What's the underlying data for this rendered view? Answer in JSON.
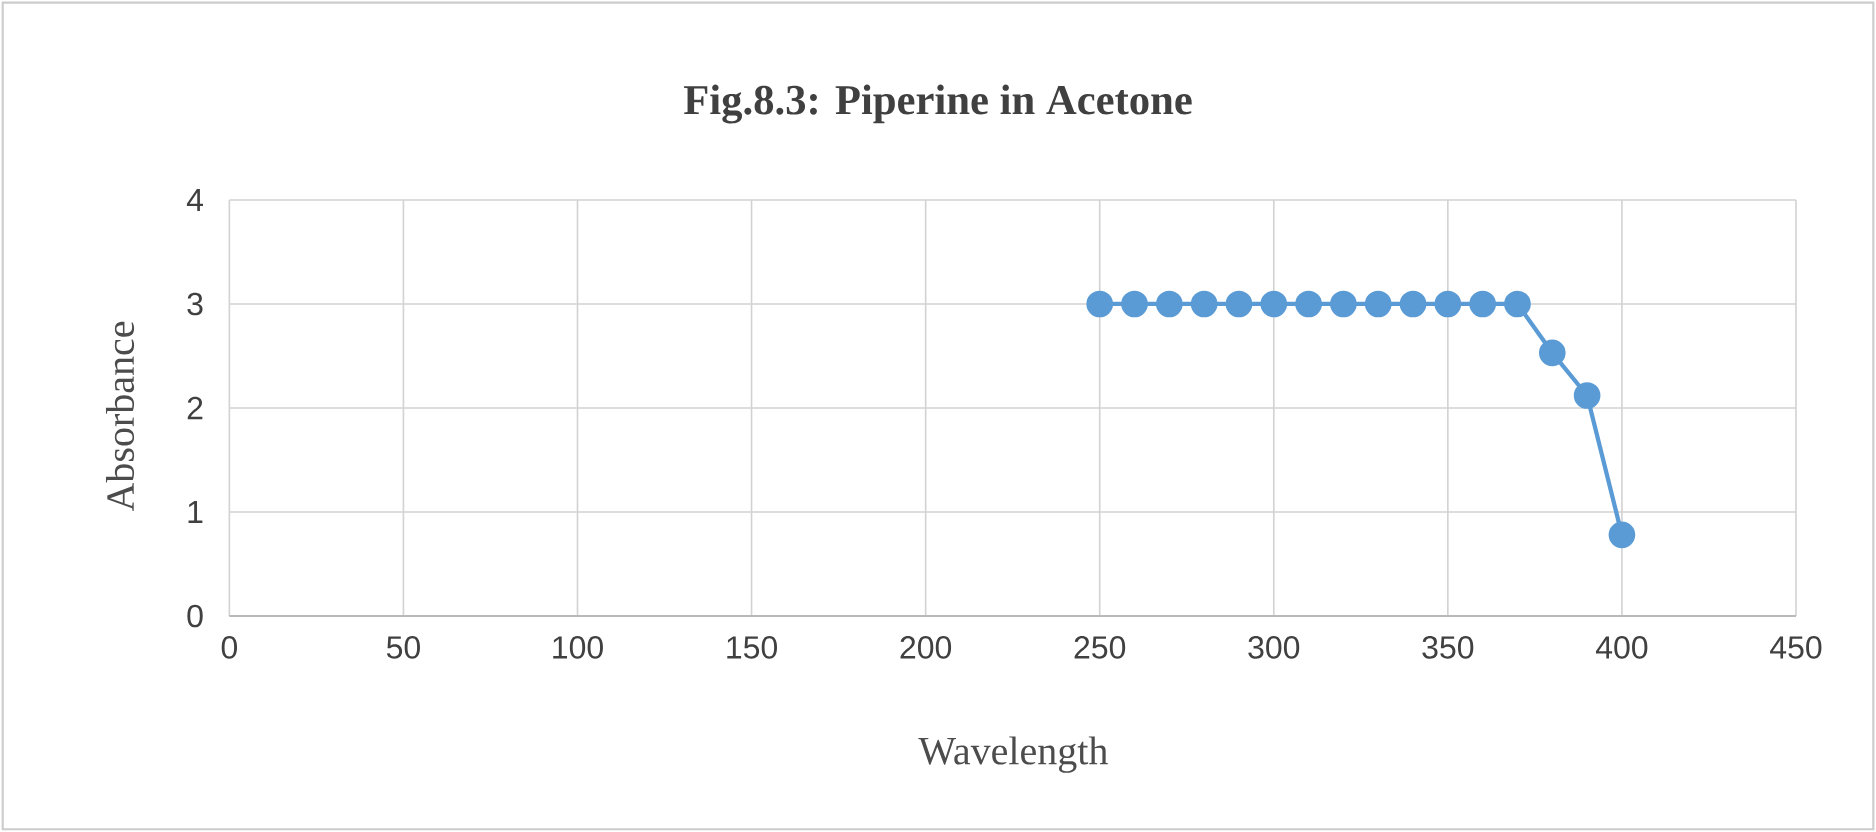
{
  "chart_data": {
    "type": "line",
    "title": "Fig.8.3: Piperine in Acetone",
    "xlabel": "Wavelength",
    "ylabel": "Absorbance",
    "x": [
      250,
      260,
      270,
      280,
      290,
      300,
      310,
      320,
      330,
      340,
      350,
      360,
      370,
      380,
      390,
      400
    ],
    "series": [
      {
        "color": "#5b9bd5",
        "values": [
          3,
          3,
          3,
          3,
          3,
          3,
          3,
          3,
          3,
          3,
          3,
          3,
          3,
          2.53,
          2.12,
          0.78
        ]
      }
    ],
    "xlim": [
      0,
      450
    ],
    "xticks": [
      0,
      50,
      100,
      150,
      200,
      250,
      300,
      350,
      400,
      450
    ],
    "ylim": [
      0,
      4
    ],
    "yticks": [
      0,
      1,
      2,
      3,
      4
    ],
    "grid": true,
    "marker": "circle",
    "line_style": "solid"
  }
}
